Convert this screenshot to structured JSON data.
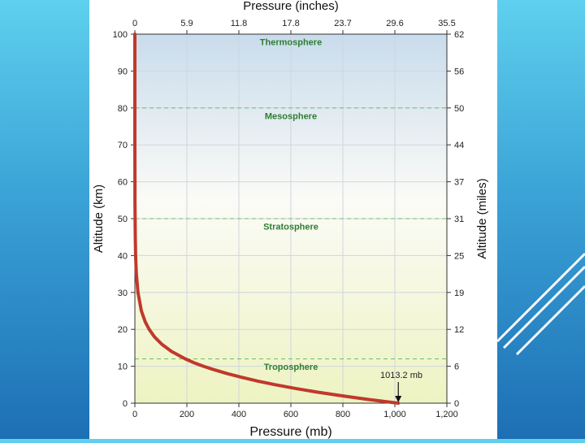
{
  "chart_data": {
    "type": "line",
    "x_axis_bottom": {
      "label": "Pressure (mb)",
      "range": [
        0,
        1200
      ],
      "ticks": [
        0,
        200,
        400,
        600,
        800,
        1000,
        1200
      ],
      "tick_labels": [
        "0",
        "200",
        "400",
        "600",
        "800",
        "1,000",
        "1,200"
      ]
    },
    "x_axis_top": {
      "label": "Pressure (inches)",
      "tick_labels": [
        "0",
        "5.9",
        "11.8",
        "17.8",
        "23.7",
        "29.6",
        "35.5"
      ]
    },
    "y_axis_left": {
      "label": "Altitude (km)",
      "range": [
        0,
        100
      ],
      "ticks": [
        0,
        10,
        20,
        30,
        40,
        50,
        60,
        70,
        80,
        90,
        100
      ]
    },
    "y_axis_right": {
      "label": "Altitude (miles)",
      "tick_labels": [
        "0",
        "6",
        "12",
        "19",
        "25",
        "31",
        "37",
        "44",
        "50",
        "56",
        "62"
      ]
    },
    "grid": true,
    "series": [
      {
        "color": "#c0392b",
        "points": [
          [
            1013.2,
            0
          ],
          [
            899,
            1
          ],
          [
            795,
            2
          ],
          [
            701,
            3
          ],
          [
            616,
            4
          ],
          [
            540,
            5
          ],
          [
            472,
            6
          ],
          [
            411,
            7
          ],
          [
            356,
            8
          ],
          [
            307,
            9
          ],
          [
            264,
            10
          ],
          [
            226,
            11
          ],
          [
            194,
            12
          ],
          [
            141,
            14
          ],
          [
            103,
            16
          ],
          [
            75,
            18
          ],
          [
            55,
            20
          ],
          [
            40,
            22
          ],
          [
            25,
            25
          ],
          [
            12,
            30
          ],
          [
            5.7,
            35
          ],
          [
            2.9,
            40
          ],
          [
            1.5,
            45
          ],
          [
            0.8,
            50
          ],
          [
            0.4,
            55
          ],
          [
            0.2,
            60
          ],
          [
            0.05,
            70
          ],
          [
            0.01,
            80
          ],
          [
            0.003,
            90
          ],
          [
            0.0003,
            100
          ]
        ]
      }
    ],
    "layer_boundaries_km": [
      12,
      50,
      80
    ],
    "layers": [
      {
        "name": "Troposphere",
        "y": 9
      },
      {
        "name": "Stratosphere",
        "y": 47
      },
      {
        "name": "Mesosphere",
        "y": 77
      },
      {
        "name": "Thermosphere",
        "y": 97
      }
    ],
    "annotation": {
      "text": "1013.2 mb",
      "x": 1013.2,
      "y": 0
    },
    "colors": {
      "curve": "#c0392b",
      "layer_text": "#2e7d32",
      "boundary": "#6abf69"
    }
  }
}
